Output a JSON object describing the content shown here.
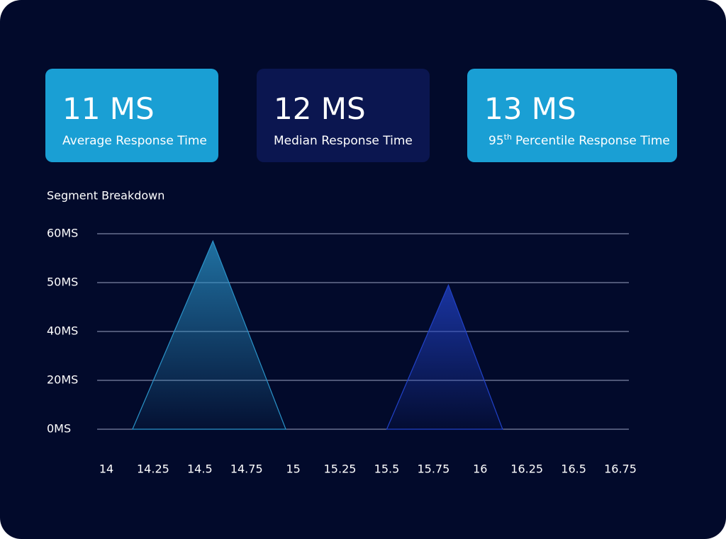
{
  "cards": [
    {
      "value": "11 MS",
      "label": "Average Response Time",
      "color": "#1a9fd4"
    },
    {
      "value": "12 MS",
      "label": "Median Response Time",
      "color": "#0b1650"
    },
    {
      "value": "13 MS",
      "label_number": "95",
      "label_sup": "th",
      "label": "Percentile Response Time",
      "color": "#1a9fd4"
    }
  ],
  "chart_data": {
    "type": "area",
    "title": "Segment Breakdown",
    "yticks": [
      {
        "value": 0,
        "label": "0MS"
      },
      {
        "value": 20,
        "label": "20MS"
      },
      {
        "value": 40,
        "label": "40MS"
      },
      {
        "value": 50,
        "label": "50MS"
      },
      {
        "value": 60,
        "label": "60MS"
      }
    ],
    "xlim": [
      14,
      16.75
    ],
    "xticks": [
      14,
      14.25,
      14.5,
      14.75,
      15,
      15.25,
      15.5,
      15.75,
      16,
      16.25,
      16.5,
      16.75
    ],
    "grid": true,
    "series": [
      {
        "color": "#2a93c9",
        "x": [
          14.14,
          14.57,
          14.96
        ],
        "values": [
          0,
          58.5,
          0
        ]
      },
      {
        "color": "#2142c8",
        "x": [
          15.5,
          15.83,
          16.12
        ],
        "values": [
          0,
          49.5,
          0
        ]
      }
    ]
  }
}
